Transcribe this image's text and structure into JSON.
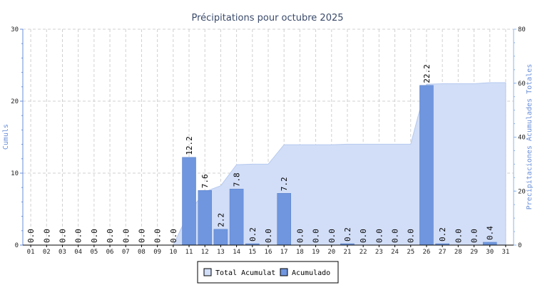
{
  "chart_data": {
    "type": "bar",
    "title": "Précipitations pour octubre 2025",
    "ylabel_left": "Cumuls",
    "ylabel_right": "Precipitaciones Acumulades Totales",
    "categories": [
      "01",
      "02",
      "03",
      "04",
      "05",
      "06",
      "07",
      "08",
      "09",
      "10",
      "11",
      "12",
      "13",
      "14",
      "15",
      "16",
      "17",
      "18",
      "19",
      "20",
      "21",
      "22",
      "23",
      "24",
      "25",
      "26",
      "27",
      "28",
      "29",
      "30",
      "31"
    ],
    "series": [
      {
        "name": "Acumulado",
        "type": "bar",
        "axis": "left",
        "color": "#6f96de",
        "values": [
          0.0,
          0.0,
          0.0,
          0.0,
          0.0,
          0.0,
          0.0,
          0.0,
          0.0,
          0.0,
          12.2,
          7.6,
          2.2,
          7.8,
          0.2,
          0.0,
          7.2,
          0.0,
          0.0,
          0.0,
          0.2,
          0.0,
          0.0,
          0.0,
          0.0,
          22.2,
          0.2,
          0.0,
          0.0,
          0.4,
          null
        ],
        "labels": [
          "0.0",
          "0.0",
          "0.0",
          "0.0",
          "0.0",
          "0.0",
          "0.0",
          "0.0",
          "0.0",
          "0.0",
          "12.2",
          "7.6",
          "2.2",
          "7.8",
          "0.2",
          "0.0",
          "7.2",
          "0.0",
          "0.0",
          "0.0",
          "0.2",
          "0.0",
          "0.0",
          "0.0",
          "0.0",
          "22.2",
          "0.2",
          "0.0",
          "0.0",
          "0.4",
          ""
        ]
      },
      {
        "name": "Total Acumulat",
        "type": "area",
        "axis": "right",
        "color": "#d2def7",
        "values": [
          0.0,
          0.0,
          0.0,
          0.0,
          0.0,
          0.0,
          0.0,
          0.0,
          0.0,
          0.0,
          12.2,
          19.8,
          22.0,
          29.8,
          30.0,
          30.0,
          37.2,
          37.2,
          37.2,
          37.2,
          37.4,
          37.4,
          37.4,
          37.4,
          37.4,
          59.6,
          59.8,
          59.8,
          59.8,
          60.2,
          60.2
        ]
      }
    ],
    "ylim_left": [
      0,
      30
    ],
    "yticks_left": [
      0,
      10,
      20,
      30
    ],
    "ylim_right": [
      0,
      80
    ],
    "yticks_right": [
      0,
      20,
      40,
      60,
      80
    ],
    "grid": true,
    "legend_position": "bottom-center",
    "colors": {
      "bar": "#6f96de",
      "bar_border": "#5a80c8",
      "area": "#d2def7",
      "area_border": "#b6c9ef",
      "axis_left": "#6a8fd8",
      "axis_right": "#8fb4ea",
      "grid": "#d0d0d0"
    }
  }
}
